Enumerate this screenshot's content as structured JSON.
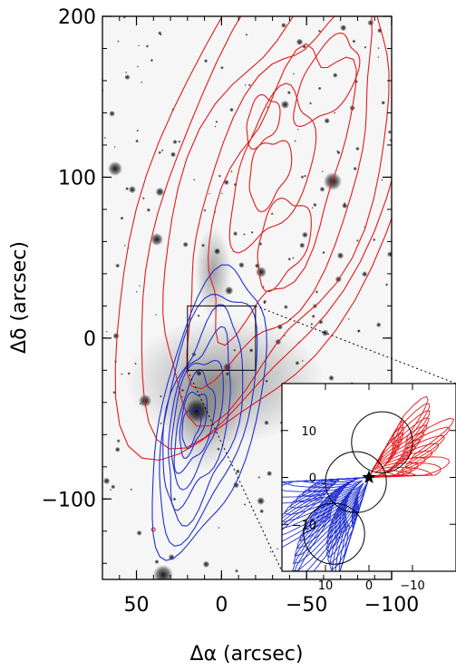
{
  "chart_data": {
    "type": "contour",
    "xlabel": "Δα (arcsec)",
    "ylabel": "Δδ (arcsec)",
    "xlim": [
      70,
      -100
    ],
    "ylim": [
      -150,
      200
    ],
    "x_ticks": [
      "50",
      "0",
      "−50",
      "−100"
    ],
    "y_ticks": [
      "200",
      "100",
      "0",
      "−100"
    ],
    "x_tick_values": [
      50,
      0,
      -50,
      -100
    ],
    "y_tick_values": [
      200,
      100,
      0,
      -100
    ],
    "background": "grayscale optical image with stars",
    "zoom_box": {
      "x": [
        20,
        -20
      ],
      "y": [
        -20,
        20
      ]
    },
    "series": [
      {
        "color": "#e31a1c",
        "lobe": "redshifted (north-west)"
      },
      {
        "color": "#1f2fd0",
        "lobe": "blueshifted (south-east)"
      }
    ],
    "inset": {
      "x_ticks": [
        "10",
        "0",
        "−10"
      ],
      "y_ticks": [
        "10",
        "0",
        "−10"
      ],
      "x_tick_values": [
        10,
        0,
        -10
      ],
      "y_tick_values": [
        10,
        0,
        -10
      ],
      "xlim": [
        20,
        -20
      ],
      "ylim": [
        -20,
        20
      ],
      "marker": "star at origin",
      "circles": [
        {
          "cx": -3,
          "cy": 7.5,
          "r": 7
        },
        {
          "cx": 3,
          "cy": -1,
          "r": 7
        },
        {
          "cx": 8,
          "cy": -12,
          "r": 7
        }
      ]
    }
  }
}
